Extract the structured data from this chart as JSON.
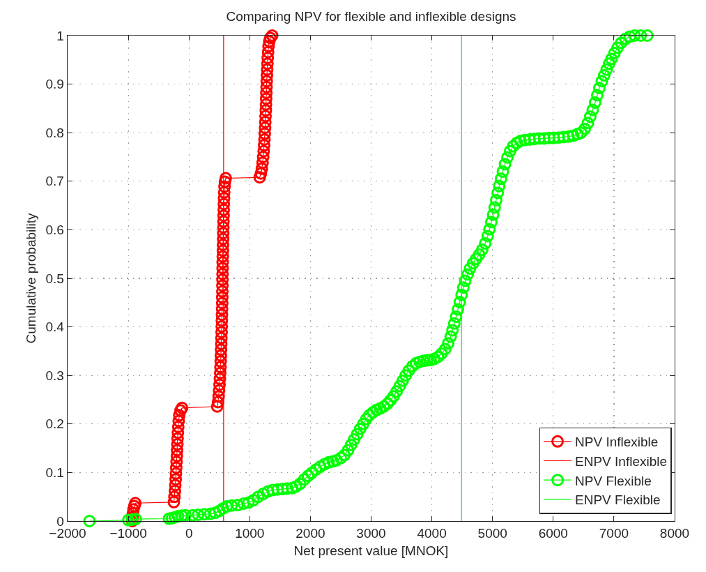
{
  "chart_data": {
    "type": "line",
    "title": "Comparing NPV for flexible and inflexible designs",
    "xlabel": "Net present value [MNOK]",
    "ylabel": "Cumulative probability",
    "xlim": [
      -2000,
      8000
    ],
    "xticks": [
      -2000,
      -1000,
      0,
      1000,
      2000,
      3000,
      4000,
      5000,
      6000,
      7000,
      8000
    ],
    "ylim": [
      0,
      1
    ],
    "yticks": [
      0,
      0.1,
      0.2,
      0.3,
      0.4,
      0.5,
      0.6,
      0.7,
      0.8,
      0.9,
      1
    ],
    "grid": true,
    "legend": "bottom right",
    "marker": "circle",
    "series": [
      {
        "name": "NPV Inflexible",
        "color": "#ff0000",
        "x": [
          -935,
          -930,
          -925,
          -915,
          -900,
          -885,
          -250,
          -240,
          -232,
          -226,
          -220,
          -215,
          -210,
          -205,
          -200,
          -196,
          -192,
          -188,
          -183,
          -177,
          -170,
          -160,
          -140,
          -115,
          465,
          478,
          488,
          496,
          503,
          509,
          514,
          518,
          522,
          525,
          528,
          531,
          534,
          537,
          539,
          541,
          543,
          545,
          547,
          548,
          549,
          550,
          551,
          552,
          553,
          554,
          556,
          558,
          560,
          562,
          564,
          566,
          568,
          570,
          572,
          574,
          577,
          580,
          585,
          592,
          605,
          1165,
          1185,
          1200,
          1212,
          1222,
          1230,
          1237,
          1243,
          1248,
          1253,
          1257,
          1261,
          1265,
          1268,
          1271,
          1274,
          1277,
          1280,
          1284,
          1288,
          1292,
          1297,
          1303,
          1310,
          1322,
          1340,
          1370
        ],
        "values": [
          0,
          0.008,
          0.016,
          0.024,
          0.031,
          0.037,
          0.039,
          0.05,
          0.062,
          0.074,
          0.086,
          0.098,
          0.11,
          0.122,
          0.134,
          0.146,
          0.158,
          0.17,
          0.182,
          0.194,
          0.206,
          0.218,
          0.228,
          0.233,
          0.236,
          0.245,
          0.257,
          0.269,
          0.281,
          0.293,
          0.305,
          0.317,
          0.329,
          0.341,
          0.353,
          0.365,
          0.377,
          0.389,
          0.401,
          0.413,
          0.425,
          0.437,
          0.449,
          0.461,
          0.473,
          0.485,
          0.497,
          0.509,
          0.521,
          0.533,
          0.545,
          0.557,
          0.569,
          0.581,
          0.593,
          0.605,
          0.617,
          0.629,
          0.641,
          0.653,
          0.665,
          0.677,
          0.689,
          0.699,
          0.706,
          0.708,
          0.716,
          0.726,
          0.738,
          0.75,
          0.762,
          0.774,
          0.786,
          0.798,
          0.81,
          0.822,
          0.834,
          0.846,
          0.858,
          0.87,
          0.882,
          0.894,
          0.906,
          0.918,
          0.93,
          0.942,
          0.954,
          0.966,
          0.978,
          0.988,
          0.995,
          1
        ]
      },
      {
        "name": "ENPV Inflexible",
        "color": "#ff0000",
        "marker": "none",
        "x": [
          570,
          570
        ],
        "values": [
          0,
          1
        ]
      },
      {
        "name": "NPV Flexible",
        "color": "#00ff00",
        "x": [
          -1640,
          -1000,
          -940,
          -880,
          -330,
          -280,
          -230,
          -180,
          -120,
          -60,
          60,
          150,
          250,
          350,
          430,
          500,
          560,
          620,
          700,
          800,
          900,
          980,
          1060,
          1140,
          1220,
          1300,
          1380,
          1460,
          1540,
          1620,
          1700,
          1760,
          1830,
          1900,
          1960,
          2020,
          2090,
          2160,
          2230,
          2300,
          2370,
          2430,
          2500,
          2560,
          2620,
          2670,
          2720,
          2770,
          2820,
          2870,
          2920,
          2970,
          3030,
          3090,
          3150,
          3210,
          3270,
          3320,
          3370,
          3420,
          3470,
          3520,
          3570,
          3620,
          3680,
          3740,
          3800,
          3860,
          3920,
          3980,
          4040,
          4100,
          4160,
          4220,
          4270,
          4310,
          4340,
          4370,
          4400,
          4430,
          4460,
          4490,
          4520,
          4550,
          4590,
          4630,
          4680,
          4730,
          4780,
          4830,
          4880,
          4920,
          4950,
          4980,
          5010,
          5035,
          5060,
          5085,
          5110,
          5140,
          5170,
          5205,
          5245,
          5290,
          5340,
          5400,
          5460,
          5530,
          5610,
          5690,
          5770,
          5850,
          5930,
          6010,
          6090,
          6170,
          6250,
          6330,
          6400,
          6460,
          6520,
          6570,
          6610,
          6650,
          6690,
          6725,
          6760,
          6800,
          6840,
          6880,
          6920,
          6960,
          7010,
          7060,
          7120,
          7190,
          7260,
          7340,
          7440,
          7550
        ],
        "values": [
          0,
          0.002,
          0.003,
          0.004,
          0.005,
          0.006,
          0.008,
          0.01,
          0.011,
          0.012,
          0.012,
          0.013,
          0.014,
          0.015,
          0.017,
          0.021,
          0.026,
          0.03,
          0.032,
          0.033,
          0.036,
          0.038,
          0.043,
          0.05,
          0.056,
          0.061,
          0.064,
          0.065,
          0.066,
          0.067,
          0.068,
          0.071,
          0.077,
          0.086,
          0.093,
          0.099,
          0.106,
          0.112,
          0.117,
          0.121,
          0.123,
          0.125,
          0.13,
          0.136,
          0.146,
          0.157,
          0.168,
          0.179,
          0.19,
          0.2,
          0.21,
          0.218,
          0.224,
          0.229,
          0.232,
          0.236,
          0.242,
          0.249,
          0.257,
          0.267,
          0.278,
          0.289,
          0.3,
          0.31,
          0.319,
          0.325,
          0.328,
          0.33,
          0.331,
          0.332,
          0.334,
          0.338,
          0.345,
          0.354,
          0.366,
          0.38,
          0.393,
          0.407,
          0.421,
          0.436,
          0.451,
          0.466,
          0.481,
          0.495,
          0.508,
          0.52,
          0.531,
          0.54,
          0.549,
          0.559,
          0.572,
          0.587,
          0.601,
          0.616,
          0.631,
          0.646,
          0.661,
          0.676,
          0.69,
          0.705,
          0.72,
          0.735,
          0.749,
          0.762,
          0.772,
          0.779,
          0.783,
          0.785,
          0.786,
          0.787,
          0.788,
          0.788,
          0.789,
          0.789,
          0.79,
          0.791,
          0.792,
          0.794,
          0.797,
          0.8,
          0.808,
          0.82,
          0.833,
          0.847,
          0.862,
          0.877,
          0.892,
          0.906,
          0.918,
          0.93,
          0.942,
          0.952,
          0.964,
          0.975,
          0.985,
          0.993,
          0.998,
          1,
          1,
          1
        ]
      },
      {
        "name": "ENPV Flexible",
        "color": "#00ff00",
        "marker": "none",
        "x": [
          4490,
          4490
        ],
        "values": [
          0,
          1
        ]
      }
    ]
  }
}
